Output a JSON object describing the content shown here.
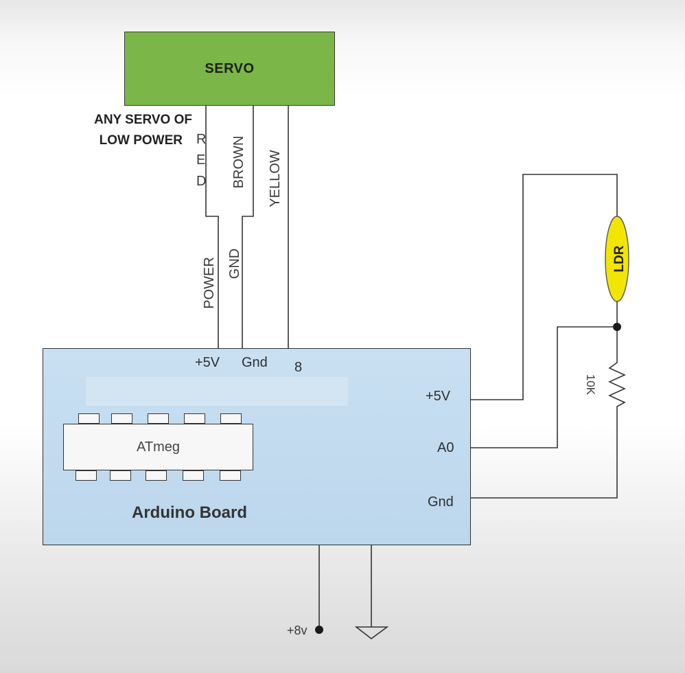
{
  "servo": {
    "label": "SERVO",
    "note_line1": "ANY SERVO OF",
    "note_line2": "LOW POWER",
    "wire_red": "RED",
    "wire_brown": "BROWN",
    "wire_yellow": "YELLOW",
    "sig_power": "POWER",
    "sig_gnd": "GND"
  },
  "board": {
    "title": "Arduino Board",
    "chip_label": "ATmeg",
    "pin_top_5v": "+5V",
    "pin_top_gnd": "Gnd",
    "pin_top_8": "8",
    "pin_right_5v": "+5V",
    "pin_right_a0": "A0",
    "pin_right_gnd": "Gnd"
  },
  "components": {
    "ldr_label": "LDR",
    "resistor_label": "10K",
    "supply_label": "+8v"
  },
  "colors": {
    "servo_fill": "#7ab648",
    "board_fill": "#c2daee",
    "ldr_fill": "#f2e600",
    "wire": "#333333"
  }
}
